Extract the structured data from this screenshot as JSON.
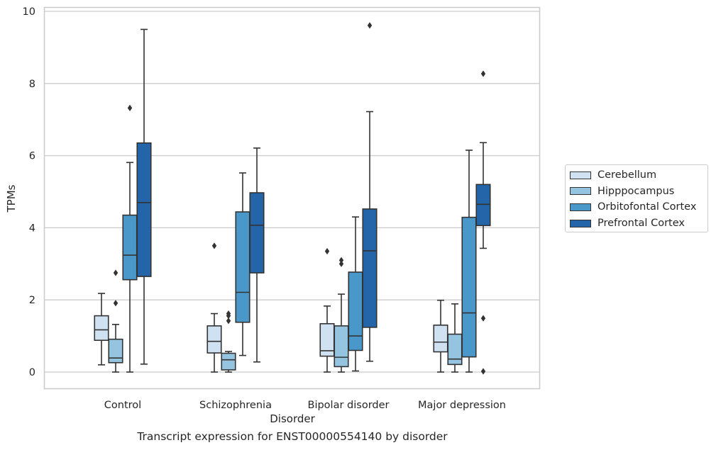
{
  "chart_data": {
    "type": "box",
    "xlabel": "Disorder",
    "ylabel": "TPMs",
    "caption": "Transcript expression for ENST00000554140 by disorder",
    "ylim": [
      -0.45,
      10.1
    ],
    "yticks": [
      0,
      2,
      4,
      6,
      8,
      10
    ],
    "ytick_labels": [
      "0",
      "2",
      "4",
      "6",
      "8",
      "10"
    ],
    "grid": "horizontal",
    "legend_position": "right",
    "categories": [
      "Control",
      "Schizophrenia",
      "Bipolar disorder",
      "Major depression"
    ],
    "series": [
      {
        "name": "Cerebellum",
        "color": "#d0e1f2",
        "boxes": [
          {
            "whisker_low": 0.2,
            "q1": 0.88,
            "median": 1.17,
            "q3": 1.56,
            "whisker_high": 2.18,
            "outliers": []
          },
          {
            "whisker_low": 0.0,
            "q1": 0.53,
            "median": 0.85,
            "q3": 1.28,
            "whisker_high": 1.62,
            "outliers": [
              3.5
            ]
          },
          {
            "whisker_low": 0.0,
            "q1": 0.44,
            "median": 0.59,
            "q3": 1.34,
            "whisker_high": 1.83,
            "outliers": [
              3.35
            ]
          },
          {
            "whisker_low": 0.0,
            "q1": 0.56,
            "median": 0.83,
            "q3": 1.3,
            "whisker_high": 1.99,
            "outliers": []
          }
        ]
      },
      {
        "name": "Hipppocampus",
        "color": "#94c4df",
        "boxes": [
          {
            "whisker_low": 0.0,
            "q1": 0.26,
            "median": 0.39,
            "q3": 0.91,
            "whisker_high": 1.32,
            "outliers": [
              1.91,
              2.75
            ]
          },
          {
            "whisker_low": 0.0,
            "q1": 0.06,
            "median": 0.34,
            "q3": 0.52,
            "whisker_high": 0.57,
            "outliers": [
              1.42,
              1.56,
              1.62
            ]
          },
          {
            "whisker_low": 0.0,
            "q1": 0.15,
            "median": 0.41,
            "q3": 1.28,
            "whisker_high": 2.16,
            "outliers": [
              3.0,
              3.1
            ]
          },
          {
            "whisker_low": 0.0,
            "q1": 0.21,
            "median": 0.36,
            "q3": 1.05,
            "whisker_high": 1.89,
            "outliers": []
          }
        ]
      },
      {
        "name": "Orbitofontal Cortex",
        "color": "#4a98c9",
        "boxes": [
          {
            "whisker_low": 0.0,
            "q1": 2.56,
            "median": 3.24,
            "q3": 4.35,
            "whisker_high": 5.81,
            "outliers": [
              7.32
            ]
          },
          {
            "whisker_low": 0.46,
            "q1": 1.38,
            "median": 2.21,
            "q3": 4.44,
            "whisker_high": 5.52,
            "outliers": []
          },
          {
            "whisker_low": 0.03,
            "q1": 0.6,
            "median": 1.0,
            "q3": 2.77,
            "whisker_high": 4.3,
            "outliers": []
          },
          {
            "whisker_low": 0.0,
            "q1": 0.42,
            "median": 1.64,
            "q3": 4.29,
            "whisker_high": 6.15,
            "outliers": []
          }
        ]
      },
      {
        "name": "Prefrontal Cortex",
        "color": "#2365a8",
        "boxes": [
          {
            "whisker_low": 0.22,
            "q1": 2.65,
            "median": 4.7,
            "q3": 6.35,
            "whisker_high": 9.5,
            "outliers": []
          },
          {
            "whisker_low": 0.28,
            "q1": 2.75,
            "median": 4.07,
            "q3": 4.97,
            "whisker_high": 6.21,
            "outliers": []
          },
          {
            "whisker_low": 0.3,
            "q1": 1.24,
            "median": 3.36,
            "q3": 4.52,
            "whisker_high": 7.22,
            "outliers": [
              9.61
            ]
          },
          {
            "whisker_low": 3.43,
            "q1": 4.06,
            "median": 4.65,
            "q3": 5.2,
            "whisker_high": 6.36,
            "outliers": [
              8.27,
              1.49,
              0.02
            ]
          }
        ]
      }
    ]
  }
}
